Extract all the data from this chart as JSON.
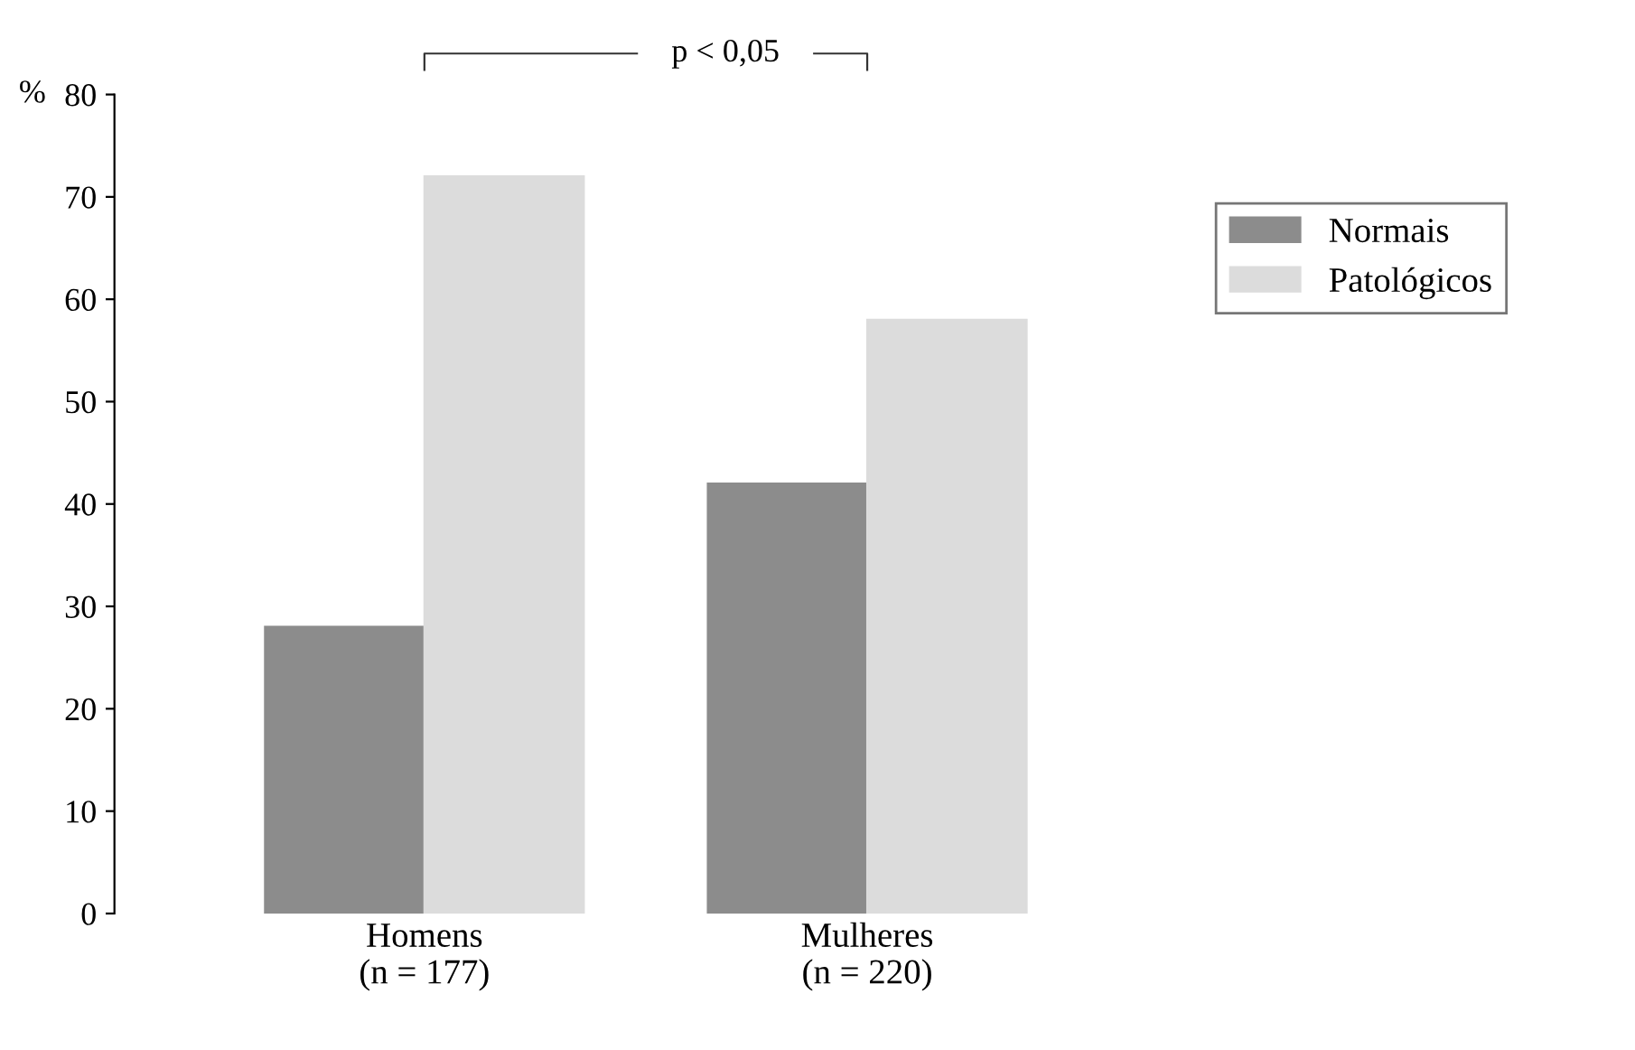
{
  "chart_data": {
    "type": "bar",
    "ylabel": "%",
    "categories": [
      "Homens\n(n = 177)",
      "Mulheres\n(n = 220)"
    ],
    "series": [
      {
        "name": "Normais",
        "color": "#8c8c8c",
        "values": [
          28,
          42
        ]
      },
      {
        "name": "Patológicos",
        "color": "#dcdcdc",
        "values": [
          72,
          58
        ]
      }
    ],
    "ylim": [
      0,
      80
    ],
    "yticks": [
      0,
      10,
      20,
      30,
      40,
      50,
      60,
      70,
      80
    ],
    "grid": false,
    "legend": "right",
    "annotations": [
      "p < 0,05"
    ]
  }
}
